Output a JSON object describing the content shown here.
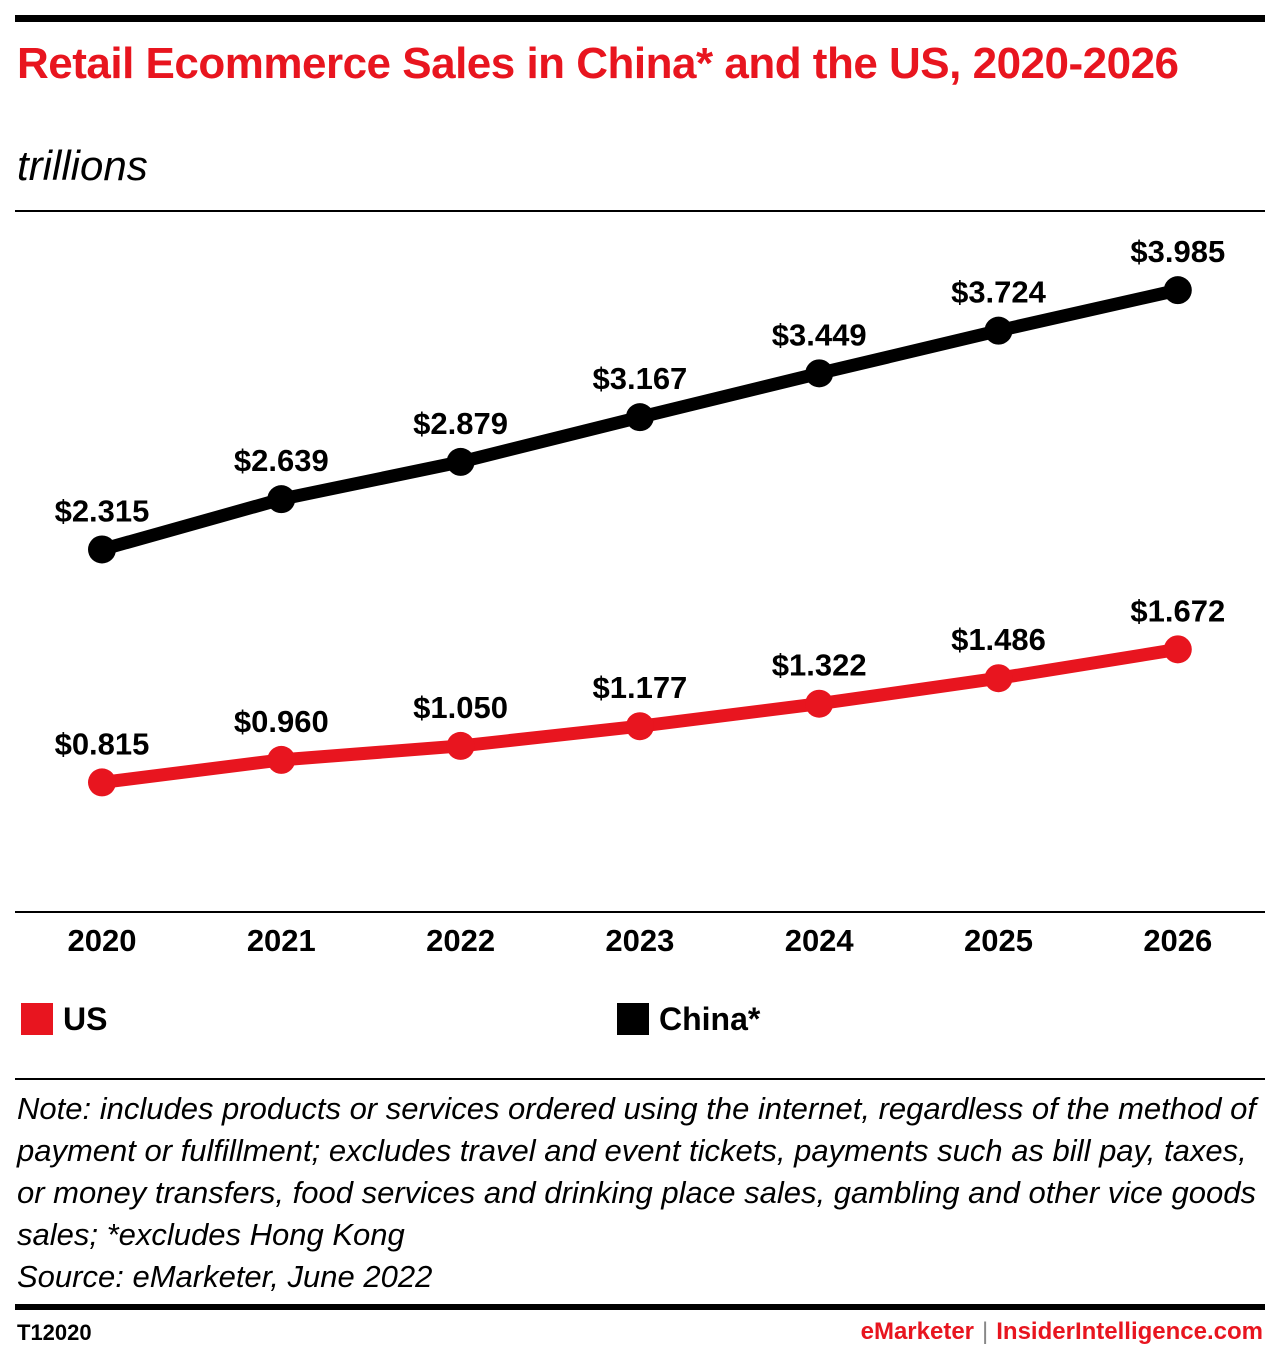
{
  "title": "Retail Ecommerce Sales in China* and the US, 2020-2026",
  "subtitle": "trillions",
  "chart_data": {
    "type": "line",
    "categories": [
      "2020",
      "2021",
      "2022",
      "2023",
      "2024",
      "2025",
      "2026"
    ],
    "series": [
      {
        "name": "China*",
        "color": "#000000",
        "values": [
          2.315,
          2.639,
          2.879,
          3.167,
          3.449,
          3.724,
          3.985
        ],
        "labels": [
          "$2.315",
          "$2.639",
          "$2.879",
          "$3.167",
          "$3.449",
          "$3.724",
          "$3.985"
        ]
      },
      {
        "name": "US",
        "color": "#e8151f",
        "values": [
          0.815,
          0.96,
          1.05,
          1.177,
          1.322,
          1.486,
          1.672
        ],
        "labels": [
          "$0.815",
          "$0.960",
          "$1.050",
          "$1.177",
          "$1.322",
          "$1.486",
          "$1.672"
        ]
      }
    ],
    "ylim": [
      0,
      4.4
    ],
    "grid": false,
    "legend_position": "bottom"
  },
  "legend": [
    {
      "label": "US",
      "color": "#e8151f"
    },
    {
      "label": "China*",
      "color": "#000000"
    }
  ],
  "note": "Note: includes products or services ordered using the internet, regardless of the method of payment or fulfillment; excludes travel and event tickets, payments such as bill pay, taxes, or money transfers, food services and drinking place sales, gambling and other vice goods sales; *excludes Hong Kong",
  "source": "Source: eMarketer, June 2022",
  "chart_id": "T12020",
  "footer": {
    "left": "eMarketer",
    "separator": "|",
    "right": "InsiderIntelligence.com"
  }
}
